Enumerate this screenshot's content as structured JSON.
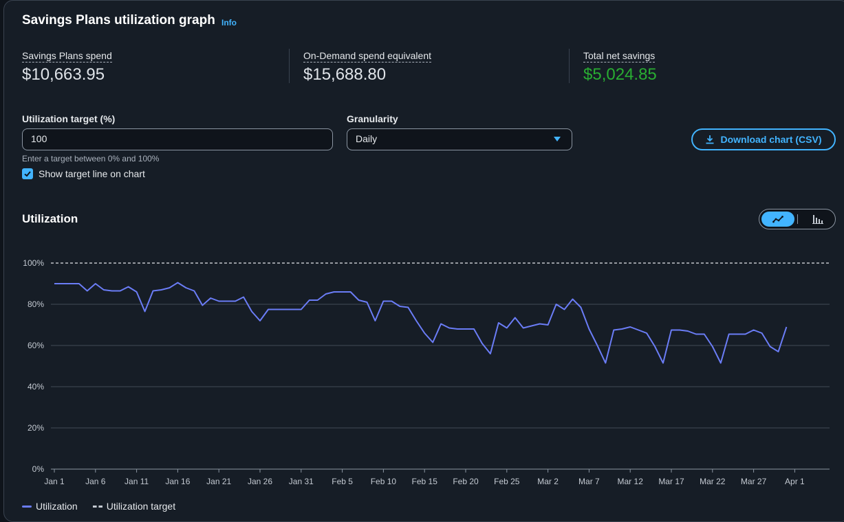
{
  "header": {
    "title": "Savings Plans utilization graph",
    "info_link": "Info"
  },
  "metrics": [
    {
      "label": "Savings Plans spend",
      "value": "$10,663.95"
    },
    {
      "label": "On-Demand spend equivalent",
      "value": "$15,688.80"
    },
    {
      "label": "Total net savings",
      "value": "$5,024.85",
      "color": "#29ad32"
    }
  ],
  "form": {
    "target_label": "Utilization target (%)",
    "target_value": "100",
    "target_hint": "Enter a target between 0% and 100%",
    "show_target_label": "Show target line on chart",
    "show_target_checked": true,
    "granularity_label": "Granularity",
    "granularity_value": "Daily",
    "download_label": "Download chart (CSV)"
  },
  "section": {
    "title": "Utilization"
  },
  "view_toggle": {
    "selected": "line-chart-icon",
    "options": [
      "line-chart-icon",
      "bar-chart-icon"
    ]
  },
  "colors": {
    "accent": "#42b4ff",
    "series": "#6b7df7",
    "savings": "#29ad32"
  },
  "chart_data": {
    "type": "line",
    "x_start": "Jan 1",
    "x_ticks": [
      "Jan 1",
      "Jan 6",
      "Jan 11",
      "Jan 16",
      "Jan 21",
      "Jan 26",
      "Jan 31",
      "Feb 5",
      "Feb 10",
      "Feb 15",
      "Feb 20",
      "Feb 25",
      "Mar 2",
      "Mar 7",
      "Mar 12",
      "Mar 17",
      "Mar 22",
      "Mar 27",
      "Apr 1"
    ],
    "y_ticks": [
      "0%",
      "20%",
      "40%",
      "60%",
      "80%",
      "100%"
    ],
    "ylim": [
      0,
      100
    ],
    "target": 100,
    "grid": true,
    "legend_position": "bottom-left",
    "series": [
      {
        "name": "Utilization",
        "values": [
          90,
          90,
          90,
          90,
          86.5,
          90,
          87,
          86.5,
          86.5,
          88.5,
          86,
          76.5,
          86.5,
          87,
          88,
          90.5,
          88,
          86.5,
          79.5,
          83,
          81.5,
          81.5,
          81.5,
          83.5,
          76.5,
          72,
          77.5,
          77.5,
          77.5,
          77.5,
          77.5,
          82,
          82,
          85,
          86,
          86,
          86,
          82,
          81,
          72,
          81.5,
          81.5,
          79,
          78.5,
          72,
          66,
          61.5,
          70.5,
          68.5,
          68,
          68,
          68,
          61,
          56,
          71,
          68.5,
          73.5,
          68.5,
          69.5,
          70.5,
          70,
          80,
          77.5,
          82.5,
          78.5,
          68,
          60,
          51.5,
          67.5,
          68,
          69,
          67.5,
          66,
          59.5,
          51.5,
          67.5,
          67.5,
          67,
          65.5,
          65.5,
          59.5,
          51.5,
          65.5,
          65.5,
          65.5,
          67.5,
          66,
          59.5,
          57,
          69
        ]
      },
      {
        "name": "Utilization target",
        "dashed": true
      }
    ]
  }
}
